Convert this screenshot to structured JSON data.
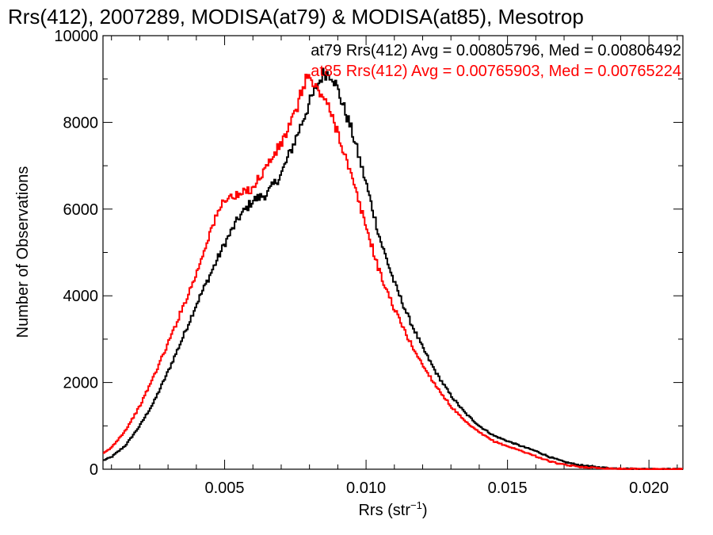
{
  "chart_data": {
    "type": "line",
    "step": true,
    "title": "Rrs(412), 2007289, MODISA(at79) & MODISA(at85), Mesotrop",
    "xlabel": "Rrs (str",
    "xlabel_superscript": "−1",
    "xlabel_suffix": ")",
    "ylabel": "Number of Observations",
    "xlim": [
      0.0007,
      0.0212
    ],
    "ylim": [
      0,
      10000
    ],
    "xticks": [
      0.005,
      0.01,
      0.015,
      0.02
    ],
    "xtick_labels": [
      "0.005",
      "0.010",
      "0.015",
      "0.020"
    ],
    "yticks": [
      0,
      2000,
      4000,
      6000,
      8000,
      10000
    ],
    "ytick_labels": [
      "0",
      "2000",
      "4000",
      "6000",
      "8000",
      "10000"
    ],
    "grid": false,
    "annotations": [
      {
        "text": "at79 Rrs(412) Avg = 0.00805796, Med = 0.00806492",
        "color": "#000000"
      },
      {
        "text": "at85 Rrs(412) Avg = 0.00765903, Med = 0.00765224",
        "color": "#ff0000"
      }
    ],
    "series": [
      {
        "color": "#000000",
        "points": [
          [
            0.0007,
            200
          ],
          [
            0.001,
            280
          ],
          [
            0.0015,
            550
          ],
          [
            0.002,
            1000
          ],
          [
            0.0025,
            1550
          ],
          [
            0.003,
            2250
          ],
          [
            0.0035,
            3000
          ],
          [
            0.004,
            3800
          ],
          [
            0.0045,
            4500
          ],
          [
            0.005,
            5200
          ],
          [
            0.0055,
            5800
          ],
          [
            0.006,
            6200
          ],
          [
            0.0065,
            6350
          ],
          [
            0.007,
            6800
          ],
          [
            0.0075,
            7600
          ],
          [
            0.008,
            8450
          ],
          [
            0.0085,
            9150
          ],
          [
            0.0088,
            9100
          ],
          [
            0.009,
            8750
          ],
          [
            0.0095,
            7800
          ],
          [
            0.01,
            6600
          ],
          [
            0.0105,
            5300
          ],
          [
            0.011,
            4300
          ],
          [
            0.0115,
            3500
          ],
          [
            0.012,
            2800
          ],
          [
            0.0125,
            2200
          ],
          [
            0.013,
            1700
          ],
          [
            0.0135,
            1300
          ],
          [
            0.014,
            1000
          ],
          [
            0.0145,
            780
          ],
          [
            0.015,
            650
          ],
          [
            0.0155,
            530
          ],
          [
            0.016,
            420
          ],
          [
            0.0165,
            280
          ],
          [
            0.017,
            170
          ],
          [
            0.0175,
            100
          ],
          [
            0.018,
            60
          ],
          [
            0.0185,
            30
          ],
          [
            0.019,
            15
          ],
          [
            0.02,
            5
          ],
          [
            0.0212,
            0
          ]
        ]
      },
      {
        "color": "#ff0000",
        "points": [
          [
            0.0007,
            350
          ],
          [
            0.001,
            500
          ],
          [
            0.0015,
            900
          ],
          [
            0.002,
            1450
          ],
          [
            0.0025,
            2150
          ],
          [
            0.003,
            2900
          ],
          [
            0.0035,
            3700
          ],
          [
            0.004,
            4500
          ],
          [
            0.0045,
            5500
          ],
          [
            0.005,
            6250
          ],
          [
            0.0055,
            6300
          ],
          [
            0.006,
            6500
          ],
          [
            0.0065,
            7000
          ],
          [
            0.007,
            7500
          ],
          [
            0.0075,
            8200
          ],
          [
            0.0079,
            9100
          ],
          [
            0.0082,
            8800
          ],
          [
            0.0085,
            8600
          ],
          [
            0.009,
            7800
          ],
          [
            0.0095,
            6700
          ],
          [
            0.01,
            5600
          ],
          [
            0.0105,
            4500
          ],
          [
            0.011,
            3700
          ],
          [
            0.0115,
            3000
          ],
          [
            0.012,
            2400
          ],
          [
            0.0125,
            1900
          ],
          [
            0.013,
            1450
          ],
          [
            0.0135,
            1100
          ],
          [
            0.014,
            850
          ],
          [
            0.0145,
            650
          ],
          [
            0.015,
            530
          ],
          [
            0.0155,
            420
          ],
          [
            0.016,
            300
          ],
          [
            0.0165,
            180
          ],
          [
            0.017,
            100
          ],
          [
            0.0175,
            60
          ],
          [
            0.018,
            35
          ],
          [
            0.0185,
            20
          ],
          [
            0.019,
            10
          ],
          [
            0.02,
            3
          ],
          [
            0.0212,
            0
          ]
        ]
      }
    ]
  }
}
